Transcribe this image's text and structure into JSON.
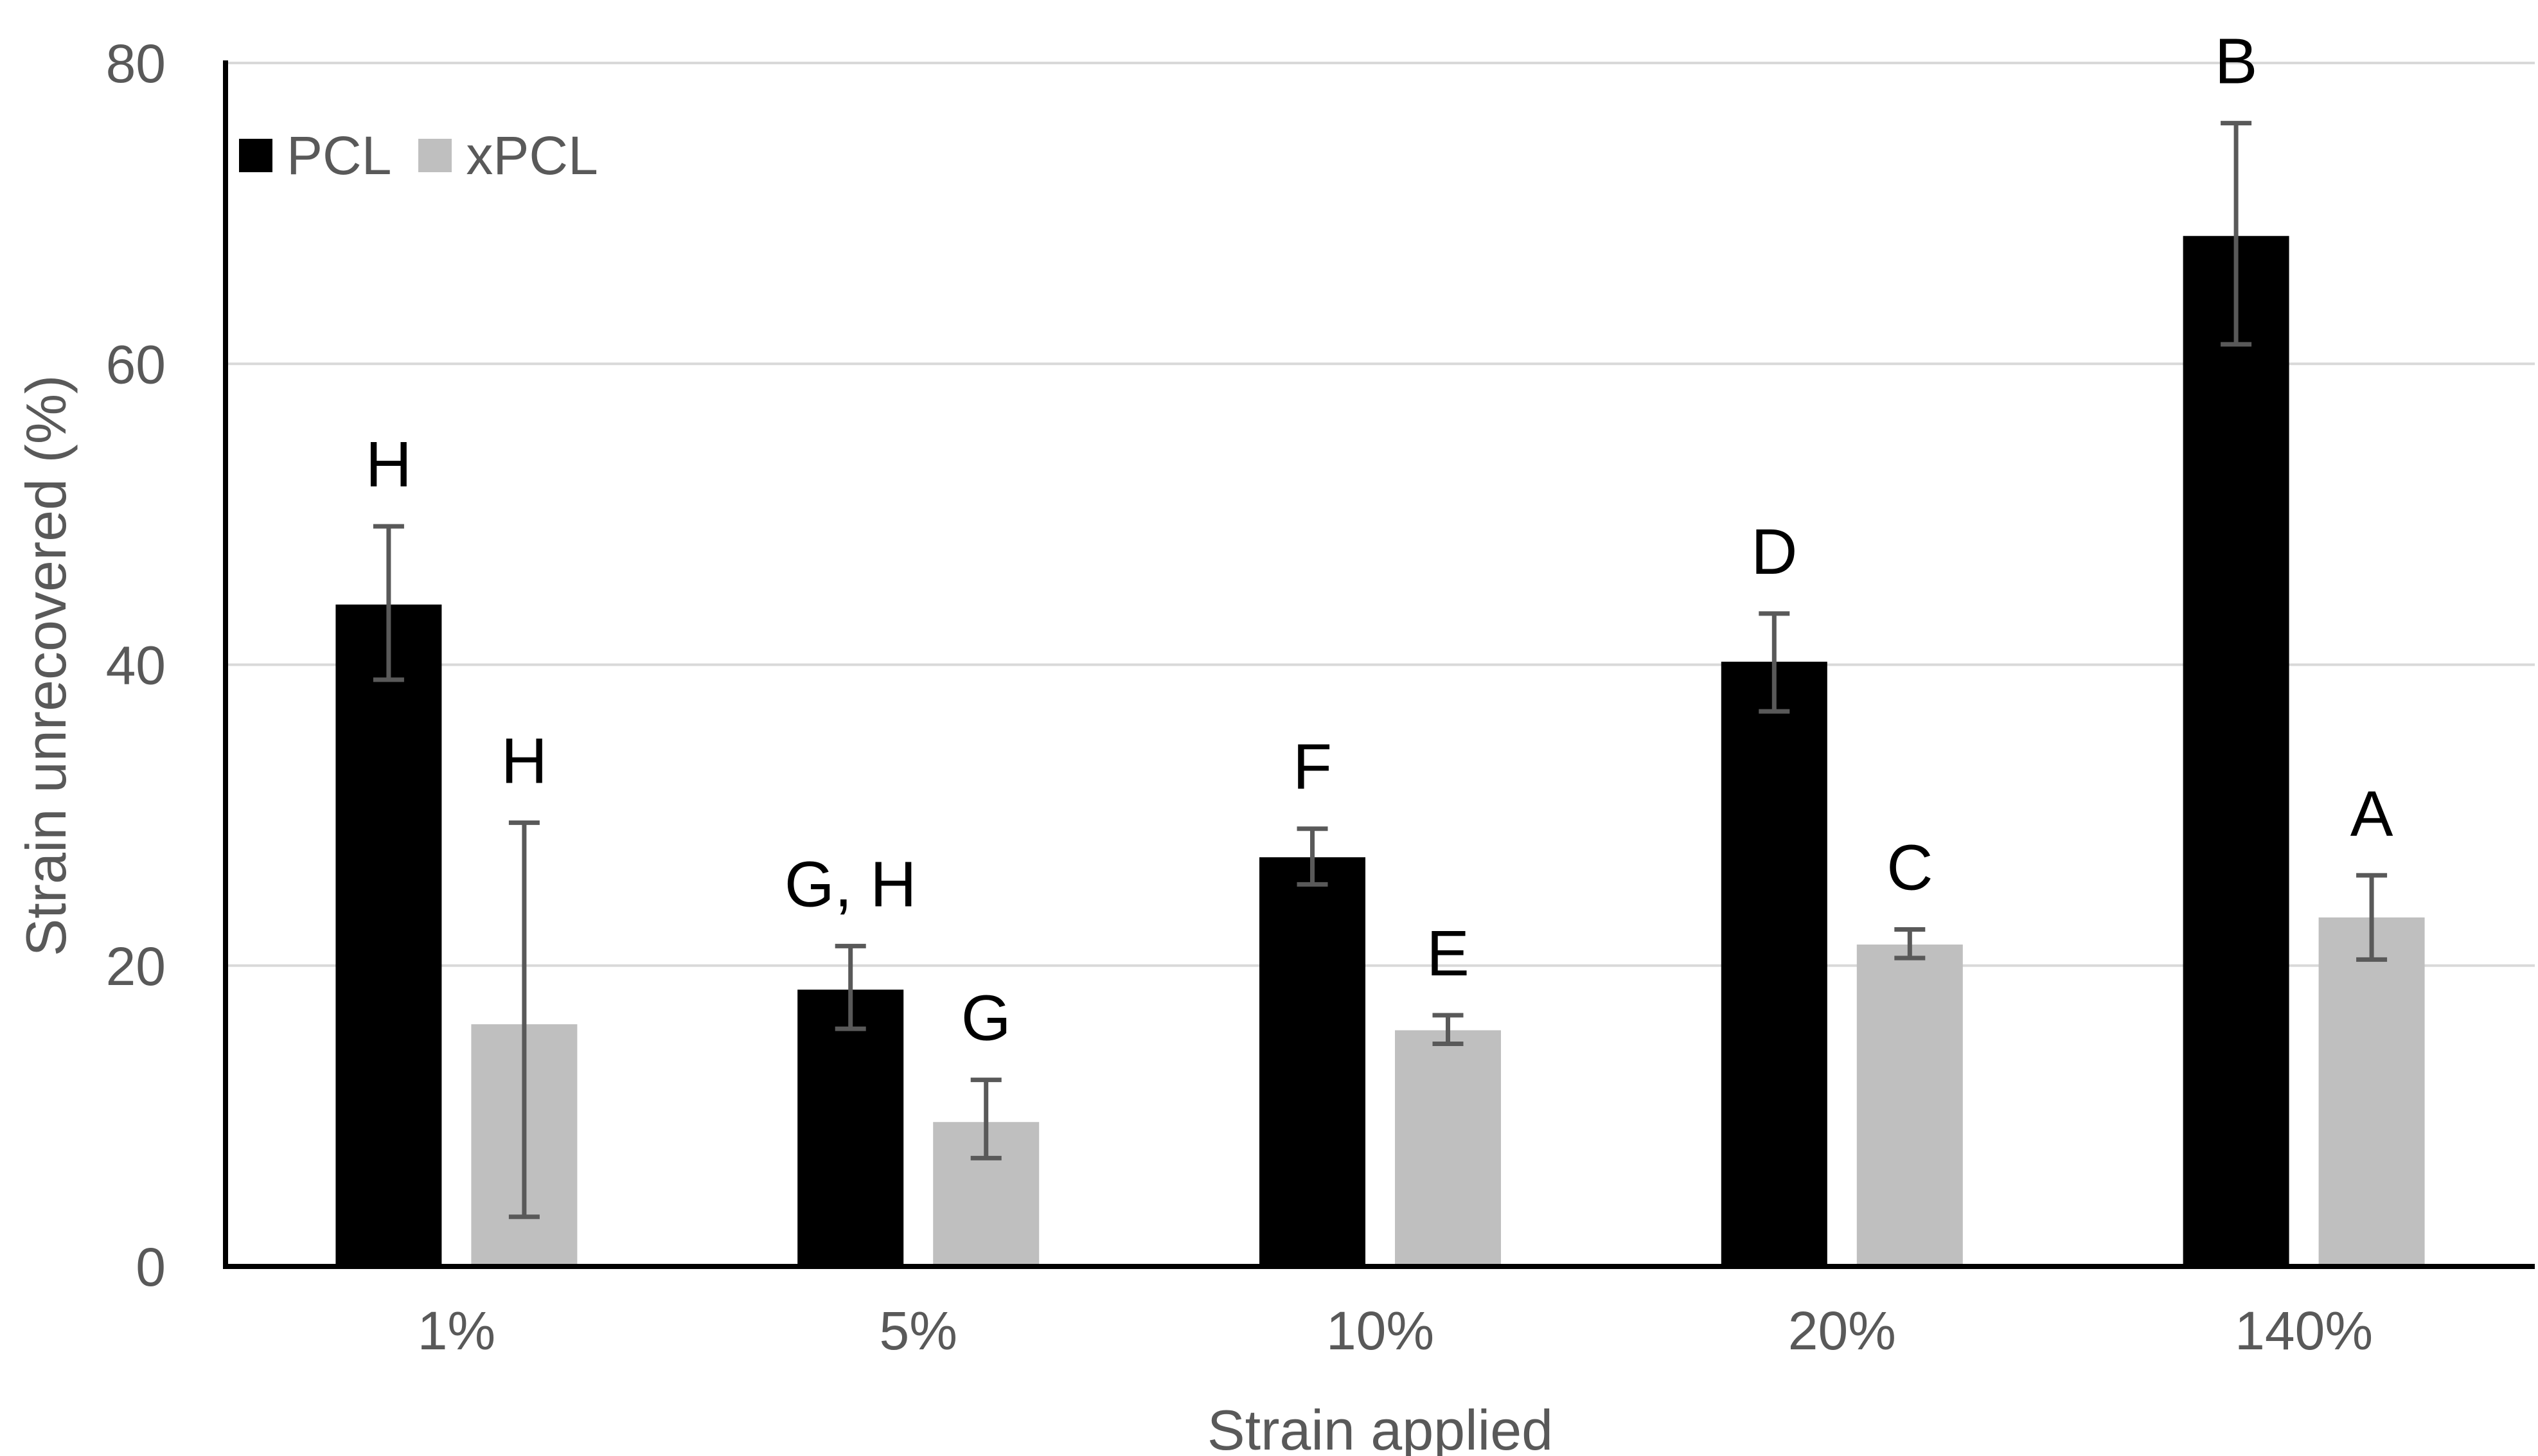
{
  "figure": {
    "background_color": "#FFFFFF",
    "plot_border": "none"
  },
  "legend": {
    "position": "top-left-inside",
    "items": [
      {
        "label": "PCL",
        "color": "#000000",
        "swatch": "filled-square"
      },
      {
        "label": "xPCL",
        "color": "#BFBFBF",
        "swatch": "filled-square"
      }
    ]
  },
  "chart_data": {
    "type": "bar",
    "title": "",
    "xlabel": "Strain applied",
    "ylabel": "Strain unrecovered (%)",
    "categories": [
      "1%",
      "5%",
      "10%",
      "20%",
      "140%"
    ],
    "series": [
      {
        "name": "PCL",
        "color": "#000000",
        "values": [
          44.0,
          18.4,
          27.2,
          40.2,
          68.5
        ],
        "error_plus": [
          5.2,
          2.9,
          1.9,
          3.2,
          7.5
        ],
        "error_minus": [
          5.0,
          2.6,
          1.8,
          3.3,
          7.2
        ],
        "significance_letters": [
          "H",
          "G, H",
          "F",
          "D",
          "B"
        ]
      },
      {
        "name": "xPCL",
        "color": "#BFBFBF",
        "values": [
          16.1,
          9.6,
          15.7,
          21.4,
          23.2
        ],
        "error_plus": [
          13.4,
          2.8,
          1.0,
          1.0,
          2.8
        ],
        "error_minus": [
          12.8,
          2.4,
          0.9,
          0.9,
          2.8
        ],
        "significance_letters": [
          "H",
          "G",
          "E",
          "C",
          "A"
        ]
      }
    ],
    "ylim": [
      0,
      80
    ],
    "yticks": [
      0,
      20,
      40,
      60,
      80
    ],
    "grid": "horizontal",
    "gridline_color": "#D9D9D9",
    "axis_color": "#000000",
    "tick_label_color": "#595959",
    "error_bar_color": "#595959",
    "letter_color": "#000000",
    "legend_position": "top-left-inside"
  }
}
